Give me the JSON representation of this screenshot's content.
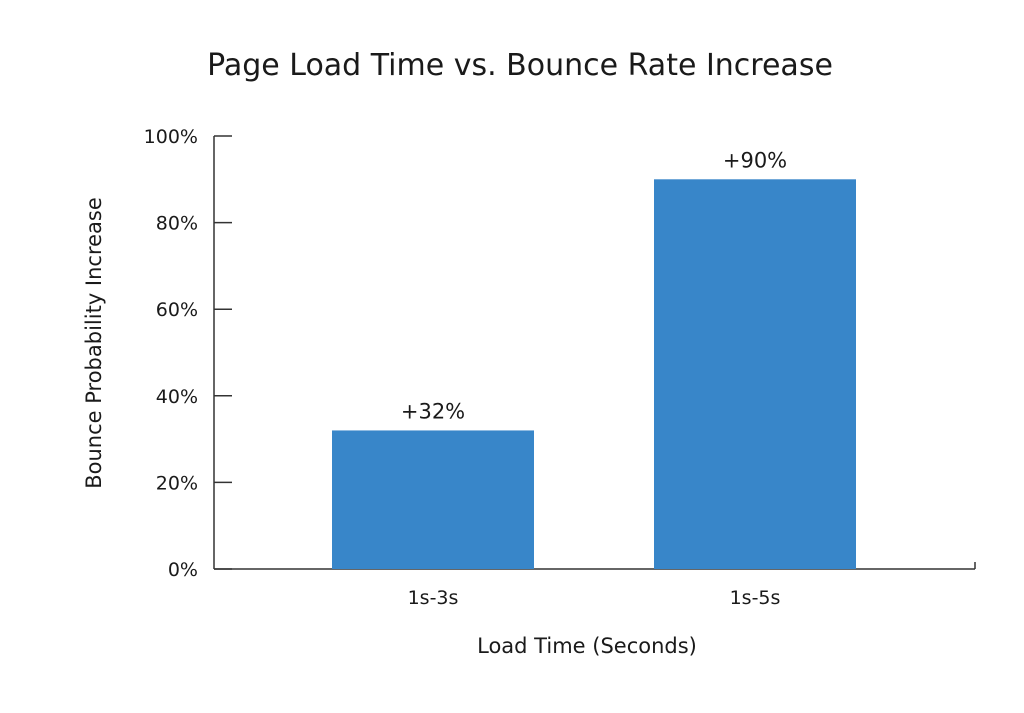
{
  "chart_data": {
    "type": "bar",
    "title": "Page Load Time vs. Bounce Rate Increase",
    "xlabel": "Load Time (Seconds)",
    "ylabel": "Bounce Probability Increase",
    "categories": [
      "1s-3s",
      "1s-5s"
    ],
    "values": [
      32,
      90
    ],
    "data_labels": [
      "+32%",
      "+90%"
    ],
    "ylim": [
      0,
      100
    ],
    "yticks": [
      0,
      20,
      40,
      60,
      80,
      100
    ],
    "ytick_labels": [
      "0%",
      "20%",
      "40%",
      "60%",
      "80%",
      "100%"
    ],
    "grid": false,
    "legend": "none",
    "bar_color": "#3886c9",
    "axis_color": "#333333"
  }
}
